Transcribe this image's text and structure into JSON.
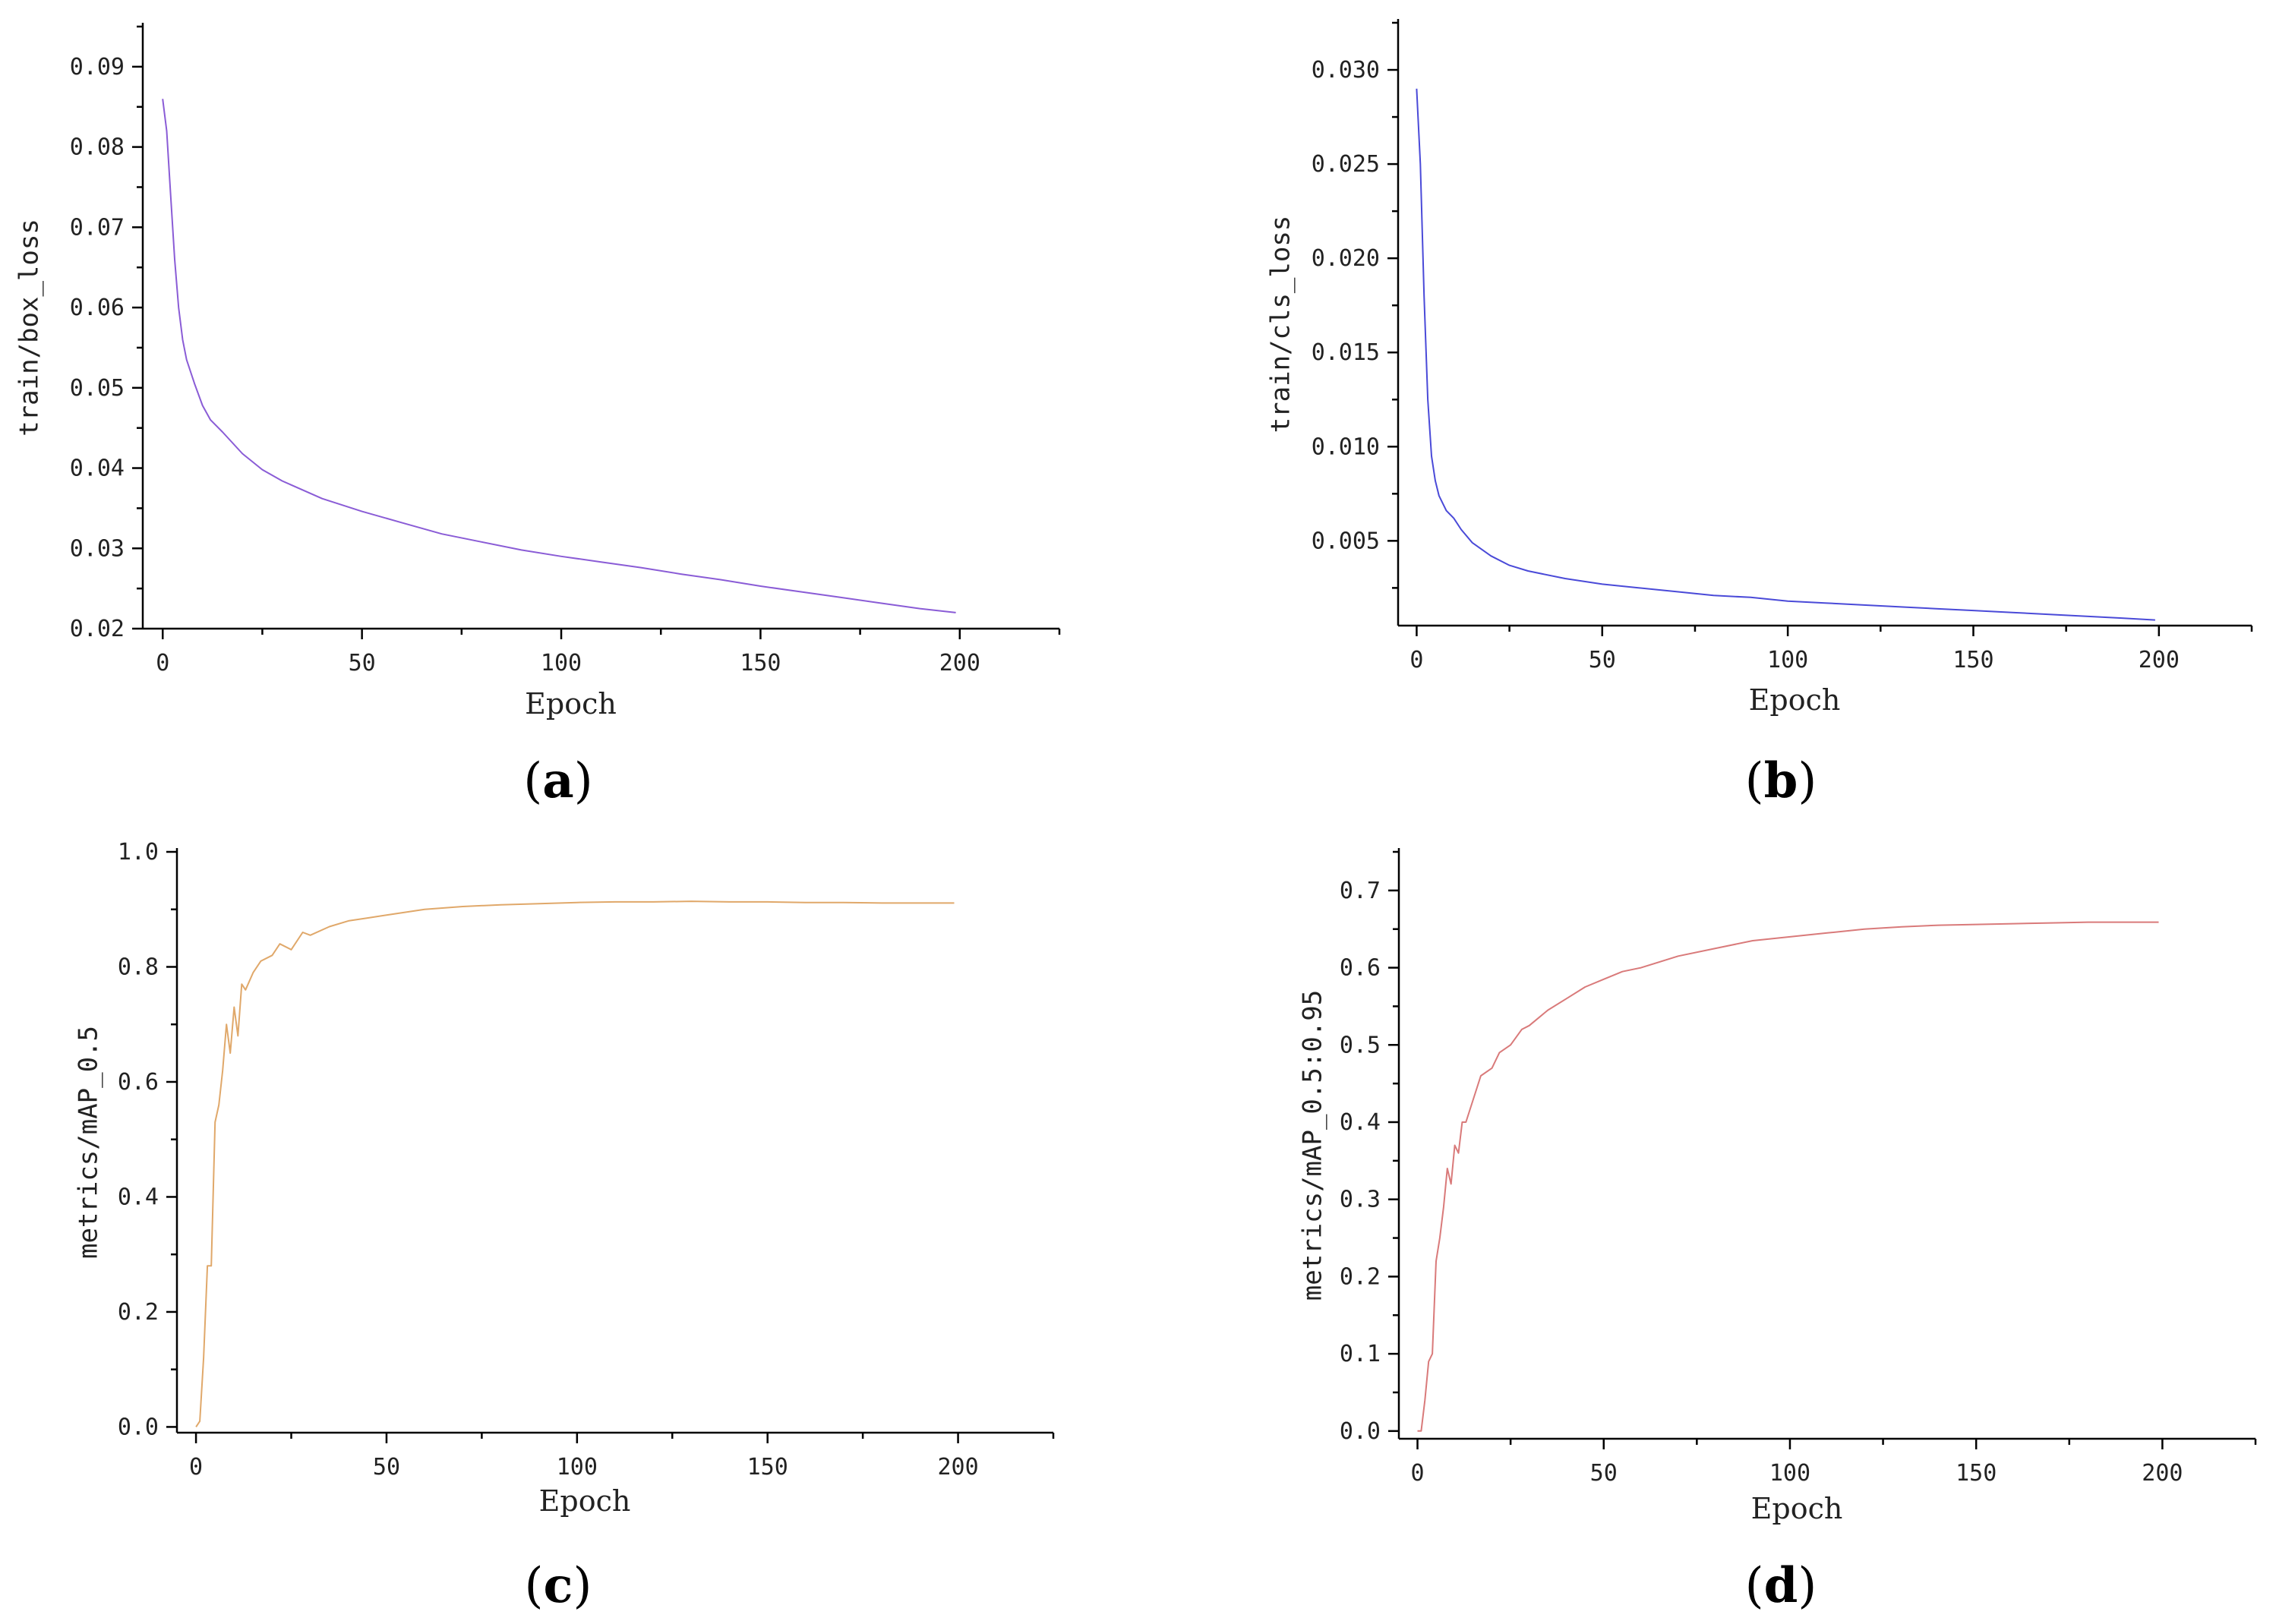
{
  "chart_data": [
    {
      "type": "line",
      "caption": "a",
      "xlabel": "Epoch",
      "ylabel": "train/box_loss",
      "xlim": [
        -5,
        225
      ],
      "ylim": [
        0.02,
        0.095
      ],
      "xticks": [
        "0",
        "50",
        "100",
        "150",
        "200"
      ],
      "yticks": [
        "0.02",
        "0.03",
        "0.04",
        "0.05",
        "0.06",
        "0.07",
        "0.08",
        "0.09"
      ],
      "color": "#8a5cd6",
      "series": [
        {
          "x": [
            0,
            1,
            2,
            3,
            4,
            5,
            6,
            8,
            10,
            12,
            15,
            20,
            25,
            30,
            40,
            50,
            60,
            70,
            80,
            90,
            100,
            110,
            120,
            130,
            140,
            150,
            160,
            170,
            180,
            190,
            199
          ],
          "values": [
            0.086,
            0.082,
            0.074,
            0.066,
            0.06,
            0.056,
            0.0535,
            0.0505,
            0.0478,
            0.046,
            0.0445,
            0.0418,
            0.0398,
            0.0384,
            0.0362,
            0.0346,
            0.0332,
            0.0318,
            0.0308,
            0.0298,
            0.029,
            0.0283,
            0.0276,
            0.0268,
            0.0261,
            0.0253,
            0.0246,
            0.0239,
            0.0232,
            0.0225,
            0.022
          ]
        }
      ]
    },
    {
      "type": "line",
      "caption": "b",
      "xlabel": "Epoch",
      "ylabel": "train/cls_loss",
      "xlim": [
        -5,
        225
      ],
      "ylim": [
        0.0005,
        0.0325
      ],
      "xticks": [
        "0",
        "50",
        "100",
        "150",
        "200"
      ],
      "yticks": [
        "0.005",
        "0.010",
        "0.015",
        "0.020",
        "0.025",
        "0.030"
      ],
      "color": "#4a4ad8",
      "series": [
        {
          "x": [
            0,
            1,
            2,
            3,
            4,
            5,
            6,
            8,
            10,
            12,
            15,
            20,
            25,
            30,
            40,
            50,
            60,
            70,
            80,
            90,
            100,
            110,
            120,
            130,
            140,
            150,
            160,
            170,
            180,
            190,
            199
          ],
          "values": [
            0.029,
            0.025,
            0.018,
            0.0125,
            0.0095,
            0.0082,
            0.0074,
            0.0066,
            0.0062,
            0.0056,
            0.0049,
            0.0042,
            0.0037,
            0.0034,
            0.003,
            0.0027,
            0.0025,
            0.0023,
            0.0021,
            0.002,
            0.0018,
            0.0017,
            0.0016,
            0.0015,
            0.0014,
            0.0013,
            0.0012,
            0.0011,
            0.001,
            0.0009,
            0.0008
          ]
        }
      ]
    },
    {
      "type": "line",
      "caption": "c",
      "xlabel": "Epoch",
      "ylabel": "metrics/mAP_0.5",
      "xlim": [
        -5,
        225
      ],
      "ylim": [
        -0.01,
        1.0
      ],
      "xticks": [
        "0",
        "50",
        "100",
        "150",
        "200"
      ],
      "yticks": [
        "0.0",
        "0.2",
        "0.4",
        "0.6",
        "0.8",
        "1.0"
      ],
      "color": "#e0a86a",
      "series": [
        {
          "x": [
            0,
            1,
            2,
            3,
            4,
            5,
            6,
            7,
            8,
            9,
            10,
            11,
            12,
            13,
            15,
            17,
            20,
            22,
            25,
            28,
            30,
            35,
            40,
            45,
            50,
            60,
            70,
            80,
            90,
            100,
            110,
            120,
            130,
            140,
            150,
            160,
            170,
            180,
            190,
            199
          ],
          "values": [
            0.0,
            0.01,
            0.12,
            0.28,
            0.28,
            0.53,
            0.56,
            0.62,
            0.7,
            0.65,
            0.73,
            0.68,
            0.77,
            0.76,
            0.79,
            0.81,
            0.82,
            0.84,
            0.83,
            0.86,
            0.855,
            0.87,
            0.88,
            0.885,
            0.89,
            0.9,
            0.905,
            0.908,
            0.91,
            0.912,
            0.913,
            0.913,
            0.914,
            0.913,
            0.913,
            0.912,
            0.912,
            0.911,
            0.911,
            0.911
          ]
        }
      ]
    },
    {
      "type": "line",
      "caption": "d",
      "xlabel": "Epoch",
      "ylabel": "metrics/mAP_0.5:0.95",
      "xlim": [
        -5,
        225
      ],
      "ylim": [
        -0.01,
        0.75
      ],
      "xticks": [
        "0",
        "50",
        "100",
        "150",
        "200"
      ],
      "yticks": [
        "0.0",
        "0.1",
        "0.2",
        "0.3",
        "0.4",
        "0.5",
        "0.6",
        "0.7"
      ],
      "color": "#d97a7a",
      "series": [
        {
          "x": [
            0,
            1,
            2,
            3,
            4,
            5,
            6,
            7,
            8,
            9,
            10,
            11,
            12,
            13,
            15,
            17,
            20,
            22,
            25,
            28,
            30,
            35,
            40,
            45,
            50,
            55,
            60,
            70,
            80,
            90,
            100,
            110,
            120,
            130,
            140,
            150,
            160,
            170,
            180,
            190,
            199
          ],
          "values": [
            0.0,
            0.0,
            0.04,
            0.09,
            0.1,
            0.22,
            0.25,
            0.29,
            0.34,
            0.32,
            0.37,
            0.36,
            0.4,
            0.4,
            0.43,
            0.46,
            0.47,
            0.49,
            0.5,
            0.52,
            0.525,
            0.545,
            0.56,
            0.575,
            0.585,
            0.595,
            0.6,
            0.615,
            0.625,
            0.635,
            0.64,
            0.645,
            0.65,
            0.653,
            0.655,
            0.656,
            0.657,
            0.658,
            0.659,
            0.659,
            0.659
          ]
        }
      ]
    }
  ]
}
